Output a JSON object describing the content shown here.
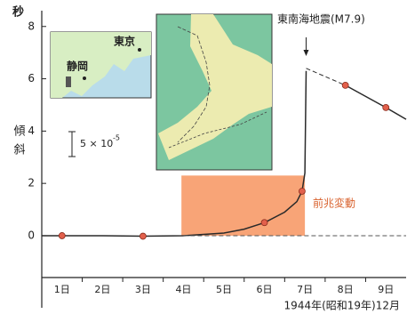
{
  "chart_data": {
    "type": "line",
    "ylabel": "傾斜",
    "yunit": "秒",
    "xlabel": "1944年(昭和19年)12月",
    "xlim": [
      0.5,
      9.5
    ],
    "ylim": [
      -1.6,
      8.4
    ],
    "yticks": [
      0,
      2,
      4,
      6,
      8
    ],
    "xticks": [
      {
        "value": 1,
        "label": "1日"
      },
      {
        "value": 2,
        "label": "2日"
      },
      {
        "value": 3,
        "label": "3日"
      },
      {
        "value": 4,
        "label": "4日"
      },
      {
        "value": 5,
        "label": "5日"
      },
      {
        "value": 6,
        "label": "6日"
      },
      {
        "value": 7,
        "label": "7日"
      },
      {
        "value": 8,
        "label": "8日"
      },
      {
        "value": 9,
        "label": "9日"
      }
    ],
    "xminor": [
      1.5,
      2.5,
      3.5,
      4.5,
      5.5,
      6.5,
      7.5,
      8.5
    ],
    "series": [
      {
        "color": "#2a2a2a",
        "style": "solid",
        "x": [
          0.5,
          1,
          2,
          3,
          4,
          5,
          5.5,
          6,
          6.5,
          6.8,
          6.93,
          7.0,
          7.03
        ],
        "values": [
          0,
          0,
          0,
          -0.02,
          0,
          0.1,
          0.25,
          0.5,
          0.9,
          1.3,
          1.7,
          2.4,
          6.3
        ]
      },
      {
        "color": "#2a2a2a",
        "style": "dashed",
        "x": [
          7.03,
          8
        ],
        "values": [
          6.4,
          5.75
        ]
      },
      {
        "color": "#2a2a2a",
        "style": "solid",
        "x": [
          8,
          9,
          9.5
        ],
        "values": [
          5.75,
          4.9,
          4.45
        ]
      },
      {
        "color": "#555555",
        "style": "dashed",
        "x": [
          4,
          9.5
        ],
        "values": [
          0,
          0
        ]
      },
      {
        "color": "#e2604c",
        "style": "markers",
        "x": [
          1,
          3,
          6,
          6.93,
          8,
          9
        ],
        "values": [
          0,
          -0.02,
          0.5,
          1.7,
          5.75,
          4.9
        ]
      }
    ],
    "region": {
      "x": [
        3.95,
        7.0
      ],
      "y": [
        0,
        2.3
      ],
      "color": "#f8a477",
      "label": "前兆変動"
    },
    "event": {
      "x": 7.03,
      "label": "東南海地震(M7.9)"
    },
    "scale_bar": {
      "label": "5 × 10",
      "exponent": "-5"
    },
    "inset_labels": [
      "東京",
      "静岡"
    ]
  }
}
